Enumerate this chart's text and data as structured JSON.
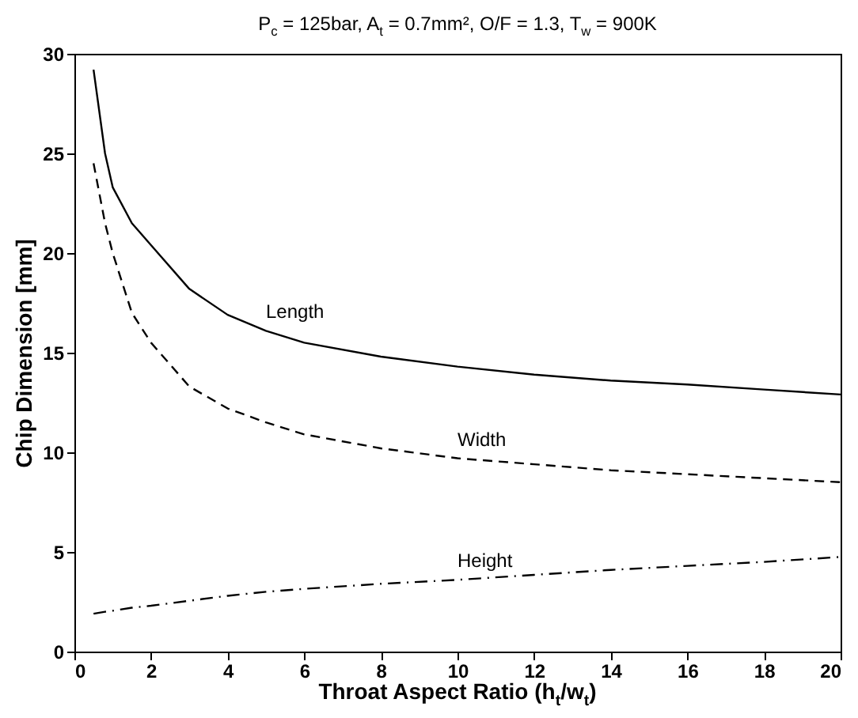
{
  "chart_data": {
    "type": "line",
    "title": "P$_{c}$ = 125bar, A$_{t}$ = 0.7mm², O/F = 1.3, T$_{w}$ = 900K",
    "xlabel": "Throat Aspect Ratio (h$_{t}$/w$_{t}$)",
    "ylabel": "Chip Dimension [mm]",
    "x": [
      0.5,
      0.8,
      1,
      1.5,
      2,
      3,
      4,
      5,
      6,
      8,
      10,
      12,
      14,
      16,
      18,
      20
    ],
    "series": [
      {
        "name": "Length",
        "color": "#000000",
        "line_style": "solid",
        "values": [
          29.2,
          25,
          23.3,
          21.5,
          20.4,
          18.2,
          16.9,
          16.1,
          15.5,
          14.8,
          14.3,
          13.9,
          13.6,
          13.4,
          13.15,
          12.9
        ]
      },
      {
        "name": "Width",
        "color": "#000000",
        "line_style": "dashed",
        "values": [
          24.5,
          21.5,
          20,
          17,
          15.5,
          13.3,
          12.2,
          11.5,
          10.9,
          10.2,
          9.7,
          9.4,
          9.1,
          8.9,
          8.7,
          8.5
        ]
      },
      {
        "name": "Height",
        "color": "#000000",
        "line_style": "dashdot",
        "values": [
          1.9,
          2,
          2.05,
          2.2,
          2.3,
          2.55,
          2.8,
          3,
          3.15,
          3.4,
          3.6,
          3.85,
          4.1,
          4.3,
          4.5,
          4.75
        ]
      }
    ],
    "xlim": [
      0,
      20
    ],
    "xticks": [
      0,
      2,
      4,
      6,
      8,
      10,
      12,
      14,
      16,
      18,
      20
    ],
    "ylim": [
      0,
      30
    ],
    "yticks": [
      0,
      5,
      10,
      15,
      20,
      25,
      30
    ],
    "grid": false,
    "legend": false
  }
}
